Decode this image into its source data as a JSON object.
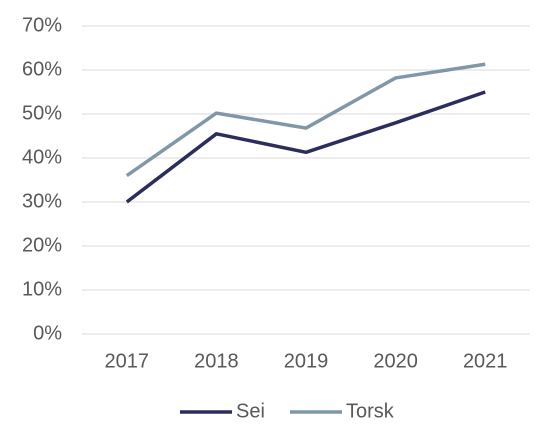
{
  "chart_data": {
    "type": "line",
    "categories": [
      "2017",
      "2018",
      "2019",
      "2020",
      "2021"
    ],
    "series": [
      {
        "name": "Sei",
        "color": "#2b2d5c",
        "values": [
          30,
          45.5,
          41.3,
          48,
          55
        ]
      },
      {
        "name": "Torsk",
        "color": "#7f97a6",
        "values": [
          36,
          50.2,
          46.8,
          58.2,
          61.3
        ]
      }
    ],
    "ylim": [
      0,
      70
    ],
    "yticks": [
      {
        "value": 0,
        "label": "0%"
      },
      {
        "value": 10,
        "label": "10%"
      },
      {
        "value": 20,
        "label": "20%"
      },
      {
        "value": 30,
        "label": "30%"
      },
      {
        "value": 40,
        "label": "40%"
      },
      {
        "value": 50,
        "label": "50%"
      },
      {
        "value": 60,
        "label": "60%"
      },
      {
        "value": 70,
        "label": "70%"
      }
    ],
    "grid": true,
    "legend": "bottom"
  }
}
